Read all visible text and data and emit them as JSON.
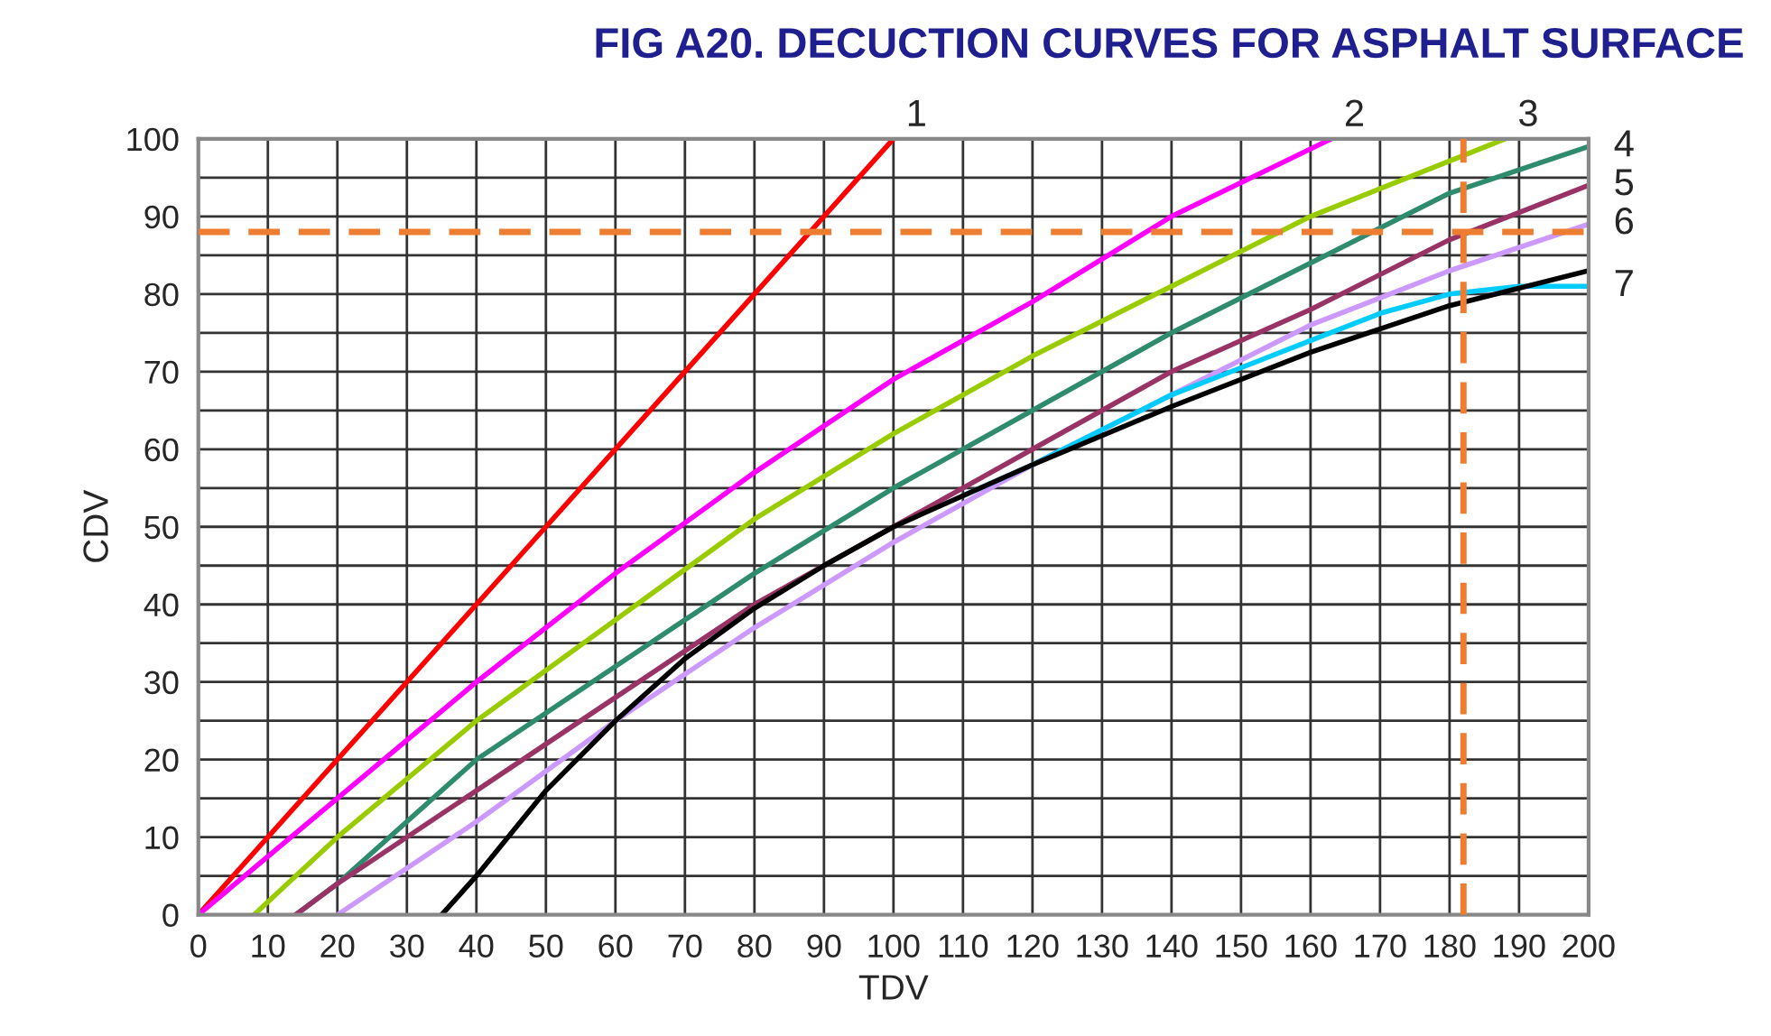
{
  "chart_data": {
    "type": "line",
    "title": "FIG A20. DECUCTION CURVES FOR ASPHALT SURFACE",
    "xlabel": "TDV",
    "ylabel": "CDV",
    "series": [
      {
        "color": "#ff0000",
        "x": [
          0,
          50,
          100
        ],
        "values": [
          0,
          50,
          100
        ]
      },
      {
        "color": "#ff00ff",
        "x": [
          0,
          20,
          40,
          60,
          80,
          100,
          120,
          140,
          163
        ],
        "values": [
          0,
          15,
          30,
          44,
          57,
          69,
          79,
          90,
          100
        ]
      },
      {
        "color": "#99cc00",
        "x": [
          8,
          20,
          40,
          60,
          80,
          100,
          120,
          140,
          160,
          188
        ],
        "values": [
          0,
          10,
          25,
          38,
          51,
          62,
          72,
          81,
          90,
          100
        ]
      },
      {
        "color": "#2e8b6e",
        "x": [
          14,
          20,
          40,
          60,
          80,
          100,
          120,
          140,
          160,
          180,
          200
        ],
        "values": [
          0,
          4,
          20,
          32,
          44,
          55,
          65,
          75,
          84,
          93,
          99
        ]
      },
      {
        "color": "#993366",
        "x": [
          14,
          20,
          40,
          60,
          80,
          100,
          120,
          140,
          160,
          180,
          200
        ],
        "values": [
          0,
          4,
          16,
          28,
          40,
          50,
          60,
          70,
          78,
          87,
          94
        ]
      },
      {
        "color": "#cc99ff",
        "x": [
          20,
          40,
          60,
          80,
          100,
          120,
          140,
          160,
          180,
          200
        ],
        "values": [
          0,
          12,
          25,
          37,
          48,
          58,
          67,
          76,
          83,
          89
        ]
      },
      {
        "color": "#00ccff",
        "x": [
          110,
          120,
          130,
          140,
          150,
          160,
          170,
          180,
          190,
          200
        ],
        "values": [
          54,
          58,
          62.5,
          67,
          70.5,
          74,
          77.5,
          80,
          81,
          81
        ]
      },
      {
        "color": "#000000",
        "x": [
          35,
          40,
          50,
          60,
          70,
          80,
          90,
          100,
          120,
          140,
          160,
          180,
          200
        ],
        "values": [
          0,
          5,
          16,
          25,
          33,
          39.5,
          45,
          50,
          58,
          65.5,
          72.5,
          78.5,
          83
        ]
      }
    ],
    "annotations": [
      {
        "text": "1",
        "x": 100,
        "y": 100
      },
      {
        "text": "2",
        "x": 163,
        "y": 100
      },
      {
        "text": "3",
        "x": 188,
        "y": 100
      },
      {
        "text": "4",
        "x": 200,
        "y": 99
      },
      {
        "text": "5",
        "x": 200,
        "y": 94
      },
      {
        "text": "6",
        "x": 200,
        "y": 89
      },
      {
        "text": "7",
        "x": 200,
        "y": 81
      }
    ],
    "ref_lines": [
      {
        "axis": "y",
        "value": 88,
        "color": "#ed7d31",
        "line_style": "dashed"
      },
      {
        "axis": "x",
        "value": 182,
        "color": "#ed7d31",
        "line_style": "dashed"
      }
    ],
    "xlim": [
      0,
      200
    ],
    "ylim": [
      0,
      100
    ],
    "xticks": [
      0,
      10,
      20,
      30,
      40,
      50,
      60,
      70,
      80,
      90,
      100,
      110,
      120,
      130,
      140,
      150,
      160,
      170,
      180,
      190,
      200
    ],
    "yticks": [
      0,
      {
        "value": 5,
        "label": null
      },
      10,
      {
        "value": 15,
        "label": null
      },
      20,
      {
        "value": 25,
        "label": null
      },
      30,
      {
        "value": 35,
        "label": null
      },
      40,
      {
        "value": 45,
        "label": null
      },
      50,
      {
        "value": 55,
        "label": null
      },
      60,
      {
        "value": 65,
        "label": null
      },
      70,
      {
        "value": 75,
        "label": null
      },
      80,
      {
        "value": 85,
        "label": null
      },
      90,
      {
        "value": 95,
        "label": null
      },
      100
    ],
    "grid": true,
    "legend": false,
    "line_style": "solid"
  }
}
